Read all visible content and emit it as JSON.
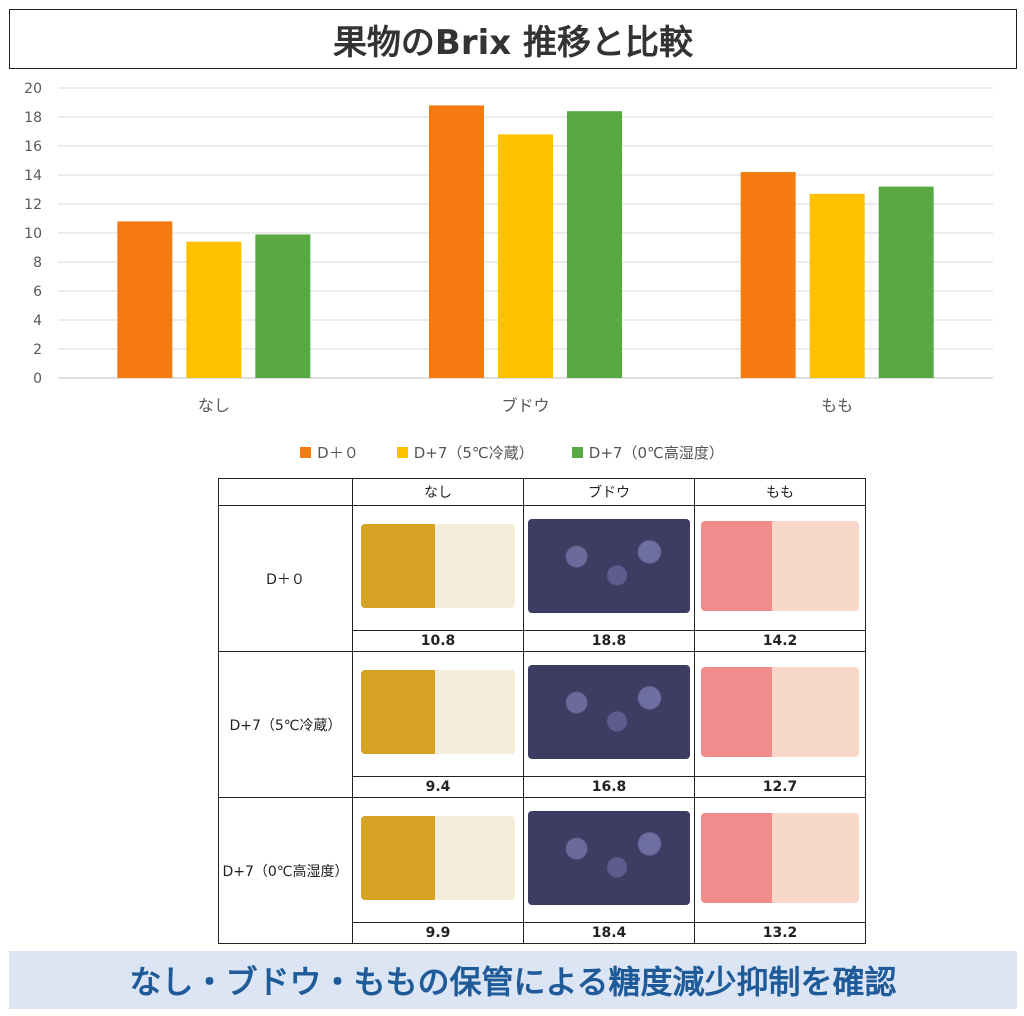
{
  "title": "果物のBrix 推移と比較",
  "chart_data": {
    "type": "bar",
    "categories": [
      "なし",
      "ブドウ",
      "もも"
    ],
    "series": [
      {
        "name": "D＋０",
        "values": [
          10.8,
          18.8,
          14.2
        ],
        "color": "#f57a0f"
      },
      {
        "name": "D+7（5℃冷蔵）",
        "values": [
          9.4,
          16.8,
          12.7
        ],
        "color": "#ffc000"
      },
      {
        "name": "D+7（0℃高湿度）",
        "values": [
          9.9,
          18.4,
          13.2
        ],
        "color": "#58a844"
      }
    ],
    "ylim": [
      0,
      20
    ],
    "yticks": [
      "0",
      "2",
      "4",
      "6",
      "8",
      "10",
      "12",
      "14",
      "16",
      "18",
      "20"
    ],
    "grid": true,
    "legend": "bottom"
  },
  "table": {
    "columns": [
      "なし",
      "ブドウ",
      "もも"
    ],
    "rows": [
      {
        "label": "D＋０",
        "values": [
          "10.8",
          "18.8",
          "14.2"
        ]
      },
      {
        "label": "D+7（5℃冷蔵）",
        "values": [
          "9.4",
          "16.8",
          "12.7"
        ]
      },
      {
        "label": "D+7（0℃高湿度）",
        "values": [
          "9.9",
          "18.4",
          "13.2"
        ]
      }
    ]
  },
  "footer": "なし・ブドウ・ももの保管による糖度減少抑制を確認"
}
